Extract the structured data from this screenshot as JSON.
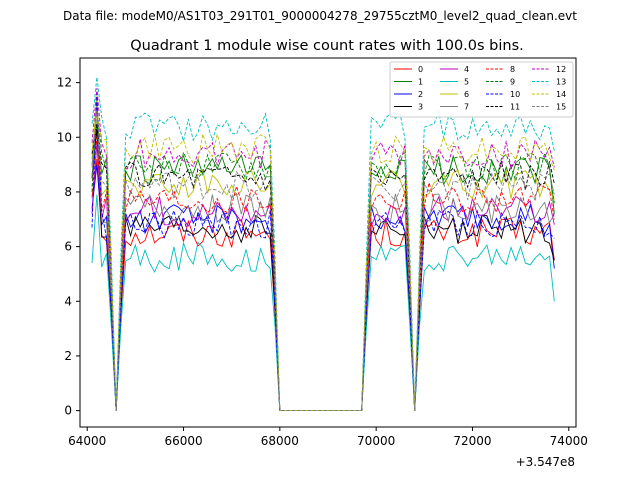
{
  "chart_data": {
    "type": "line",
    "suptitle": "Data file: modeM0/AS1T03_291T01_9000004278_29755cztM0_level2_quad_clean.evt",
    "title": "Quadrant 1 module wise count rates with 100.0s bins.",
    "xlabel": "",
    "ylabel": "",
    "x_offset_label": "+3.547e8",
    "xlim": [
      63850,
      74150
    ],
    "ylim": [
      -0.6,
      12.9
    ],
    "x_ticks": [
      64000,
      66000,
      68000,
      70000,
      72000,
      74000
    ],
    "x_tick_labels": [
      "64000",
      "66000",
      "68000",
      "70000",
      "72000",
      "74000"
    ],
    "y_ticks": [
      0,
      2,
      4,
      6,
      8,
      10,
      12
    ],
    "y_tick_labels": [
      "0",
      "2",
      "4",
      "6",
      "8",
      "10",
      "12"
    ],
    "legend_location": "top-right",
    "legend_columns": 4,
    "shape": {
      "x_start": 64100,
      "x_step": 100,
      "x_end": 73700,
      "gaps": [
        [
          64550,
          64650
        ],
        [
          68000,
          69750
        ],
        [
          70750,
          70850
        ]
      ],
      "peak_points": [
        64200,
        64750,
        69850,
        70950
      ],
      "note": "per-series levels, roughly constant between gaps; exact per-bin values not legible"
    },
    "series": [
      {
        "name": "0",
        "color": "#ff0000",
        "dash": "solid",
        "start": 7.8,
        "peak": 9.2,
        "level": 6.5,
        "end": 5.5
      },
      {
        "name": "1",
        "color": "#008000",
        "dash": "solid",
        "start": 9.0,
        "peak": 10.5,
        "level": 8.8,
        "end": 7.2
      },
      {
        "name": "2",
        "color": "#0000ff",
        "dash": "solid",
        "start": 7.4,
        "peak": 9.0,
        "level": 7.0,
        "end": 5.2
      },
      {
        "name": "3",
        "color": "#000000",
        "dash": "solid",
        "start": 8.5,
        "peak": 10.3,
        "level": 6.6,
        "end": 5.5
      },
      {
        "name": "4",
        "color": "#bf00bf",
        "dash": "solid",
        "start": 7.2,
        "peak": 9.8,
        "level": 7.3,
        "end": 6.8
      },
      {
        "name": "5",
        "color": "#00bfbf",
        "dash": "solid",
        "start": 5.4,
        "peak": 7.9,
        "level": 5.6,
        "end": 4.0
      },
      {
        "name": "6",
        "color": "#bfbf00",
        "dash": "solid",
        "start": 9.2,
        "peak": 11.5,
        "level": 8.3,
        "end": 7.7
      },
      {
        "name": "7",
        "color": "#808080",
        "dash": "solid",
        "start": 8.9,
        "peak": 11.2,
        "level": 7.4,
        "end": 7.2
      },
      {
        "name": "8",
        "color": "#ff0000",
        "dash": "dashed",
        "start": 8.2,
        "peak": 10.0,
        "level": 7.8,
        "end": 7.0
      },
      {
        "name": "9",
        "color": "#008000",
        "dash": "dashed",
        "start": 8.0,
        "peak": 11.0,
        "level": 8.9,
        "end": 7.6
      },
      {
        "name": "10",
        "color": "#0000ff",
        "dash": "dashed",
        "start": 6.7,
        "peak": 11.6,
        "level": 6.8,
        "end": 6.3
      },
      {
        "name": "11",
        "color": "#000000",
        "dash": "dashed",
        "start": 9.4,
        "peak": 10.5,
        "level": 8.6,
        "end": 8.3
      },
      {
        "name": "12",
        "color": "#bf00bf",
        "dash": "dashed",
        "start": 9.8,
        "peak": 11.8,
        "level": 9.4,
        "end": 8.9
      },
      {
        "name": "13",
        "color": "#00bfbf",
        "dash": "dashed",
        "start": 10.5,
        "peak": 12.2,
        "level": 10.4,
        "end": 9.5
      },
      {
        "name": "14",
        "color": "#bfbf00",
        "dash": "dashed",
        "start": 9.5,
        "peak": 10.9,
        "level": 9.6,
        "end": 8.8
      },
      {
        "name": "15",
        "color": "#808080",
        "dash": "dashed",
        "start": 8.6,
        "peak": 11.0,
        "level": 8.2,
        "end": 7.9
      }
    ]
  }
}
